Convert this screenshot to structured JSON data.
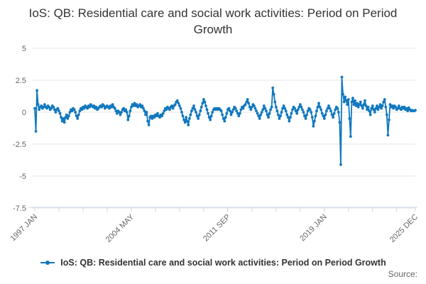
{
  "title": "IoS: QB: Residential care and social work activities: Period on Period Growth",
  "legend": {
    "label": "IoS: QB: Residential care and social work activities: Period on Period Growth"
  },
  "source_label": "Source:",
  "colors": {
    "line": "#1178be",
    "gridline": "#e6e6e6",
    "axis": "#ccd6eb",
    "tick_text": "#666666",
    "title_text": "#333333"
  },
  "chart_data": {
    "type": "line",
    "title": "IoS: QB: Residential care and social work activities: Period on Period Growth",
    "xlabel": "",
    "ylabel": "",
    "frequency": "monthly",
    "x_range": [
      "1997 JAN",
      "2025 DEC"
    ],
    "ylim": [
      -7.5,
      5
    ],
    "y_ticks": [
      5,
      2.5,
      0,
      -2.5,
      -5,
      -7.5
    ],
    "grid": "horizontal",
    "legend_position": "bottom",
    "marker": "dot",
    "x_ticks": [
      {
        "m": 0,
        "label": "1997 JAN"
      },
      {
        "m": 22
      },
      {
        "m": 44
      },
      {
        "m": 66
      },
      {
        "m": 88,
        "label": "2004 MAY"
      },
      {
        "m": 110
      },
      {
        "m": 132
      },
      {
        "m": 154
      },
      {
        "m": 176,
        "label": "2011 SEP"
      },
      {
        "m": 198
      },
      {
        "m": 220
      },
      {
        "m": 242
      },
      {
        "m": 264,
        "label": "2019 JAN"
      },
      {
        "m": 286
      },
      {
        "m": 308
      },
      {
        "m": 330
      },
      {
        "m": 347,
        "label": "2025 DEC"
      }
    ],
    "series": [
      {
        "name": "IoS: QB: Residential care and social work activities: Period on Period Growth",
        "start": "1997 JAN",
        "values": [
          0.3,
          -1.5,
          1.7,
          0.6,
          0.2,
          0.4,
          0.5,
          0.3,
          0.4,
          0.6,
          0.4,
          0.3,
          0.5,
          0.4,
          0.2,
          0.3,
          0.5,
          0.4,
          0.2,
          0.0,
          0.2,
          0.3,
          0.1,
          -0.1,
          -0.4,
          -0.7,
          -0.5,
          -0.8,
          -0.4,
          -0.2,
          -0.5,
          -0.3,
          0.0,
          0.2,
          0.1,
          0.3,
          0.2,
          0.0,
          -0.3,
          -0.5,
          -0.2,
          0.1,
          0.3,
          0.2,
          0.4,
          0.3,
          0.5,
          0.4,
          0.3,
          0.5,
          0.4,
          0.6,
          0.5,
          0.4,
          0.5,
          0.3,
          0.4,
          0.2,
          0.3,
          0.4,
          0.5,
          0.4,
          0.6,
          0.5,
          0.3,
          0.4,
          0.5,
          0.4,
          0.3,
          0.5,
          0.4,
          0.6,
          0.4,
          0.3,
          0.1,
          -0.1,
          0.1,
          0.0,
          -0.2,
          0.0,
          0.2,
          0.3,
          0.1,
          0.2,
          0.0,
          -0.6,
          -0.3,
          0.1,
          0.4,
          0.6,
          0.5,
          0.7,
          0.5,
          0.6,
          0.4,
          0.5,
          0.6,
          0.4,
          0.5,
          0.3,
          0.1,
          -0.2,
          0.0,
          -0.7,
          -1.0,
          -0.4,
          -0.3,
          -0.5,
          -0.3,
          -0.4,
          -0.2,
          -0.3,
          -0.1,
          -0.3,
          -0.4,
          -0.2,
          -0.3,
          -0.1,
          0.1,
          0.3,
          0.2,
          0.4,
          0.3,
          0.2,
          0.4,
          0.5,
          0.3,
          0.5,
          0.6,
          0.8,
          0.9,
          0.7,
          0.5,
          0.3,
          0.0,
          -0.3,
          -0.6,
          -0.8,
          -0.4,
          -0.7,
          -1.0,
          -0.5,
          -0.2,
          0.1,
          0.3,
          0.5,
          0.2,
          0.0,
          -0.3,
          -0.5,
          -0.2,
          0.1,
          0.4,
          0.7,
          1.0,
          0.8,
          0.5,
          0.2,
          -0.1,
          -0.4,
          -0.6,
          -0.3,
          0.0,
          0.2,
          0.3,
          0.2,
          0.3,
          0.2,
          0.3,
          0.2,
          0.1,
          -0.2,
          -0.5,
          -0.7,
          -0.4,
          -0.1,
          0.2,
          0.3,
          0.1,
          -0.2,
          0.0,
          0.2,
          0.4,
          0.3,
          0.1,
          -0.1,
          -0.3,
          -0.1,
          0.2,
          0.4,
          0.3,
          0.5,
          0.6,
          0.8,
          1.0,
          0.7,
          0.4,
          0.2,
          0.4,
          0.6,
          0.5,
          0.3,
          0.1,
          -0.1,
          -0.3,
          -0.5,
          -0.2,
          0.0,
          0.2,
          0.5,
          0.3,
          0.1,
          -0.2,
          -0.4,
          -0.1,
          0.2,
          0.4,
          1.9,
          1.4,
          0.8,
          0.4,
          0.1,
          -0.2,
          -0.5,
          -0.3,
          0.0,
          0.3,
          0.5,
          0.3,
          0.1,
          -0.2,
          -0.4,
          -0.7,
          -0.4,
          -0.1,
          0.2,
          0.4,
          0.3,
          0.1,
          -0.1,
          0.2,
          0.4,
          0.6,
          0.4,
          0.2,
          0.0,
          -0.3,
          -0.5,
          -0.2,
          0.1,
          0.3,
          0.2,
          0.0,
          -0.4,
          -1.1,
          -0.7,
          -0.3,
          0.1,
          0.4,
          0.7,
          0.4,
          0.2,
          -0.1,
          -0.3,
          -0.5,
          -0.2,
          0.1,
          0.3,
          0.5,
          0.3,
          0.1,
          -0.2,
          -0.4,
          -0.1,
          0.2,
          0.4,
          0.3,
          0.0,
          -0.8,
          -4.1,
          2.75,
          1.4,
          0.8,
          1.2,
          0.9,
          0.6,
          1.0,
          -0.5,
          -1.9,
          0.8,
          1.1,
          0.6,
          0.9,
          0.5,
          0.7,
          0.4,
          0.6,
          0.8,
          0.5,
          0.3,
          0.6,
          0.9,
          0.5,
          0.2,
          0.4,
          0.1,
          -0.2,
          0.3,
          0.5,
          0.2,
          0.0,
          0.3,
          0.5,
          0.2,
          0.4,
          0.6,
          0.3,
          0.5,
          0.8,
          1.0,
          0.4,
          -0.2,
          -1.8,
          -0.6,
          0.6,
          0.4,
          0.5,
          0.3,
          0.5,
          0.4,
          0.2,
          0.3,
          0.5,
          0.3,
          0.2,
          0.4,
          0.3,
          0.4,
          0.2,
          0.3,
          0.1,
          0.35,
          0.2,
          0.1,
          0.15,
          0.1,
          0.1,
          0.15
        ]
      }
    ]
  }
}
